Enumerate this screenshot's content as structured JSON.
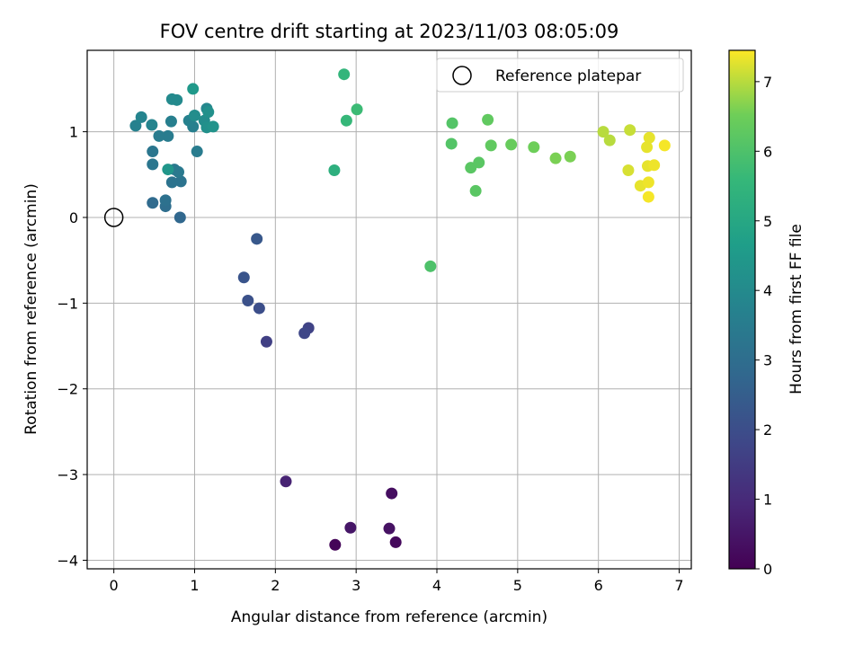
{
  "chart_data": {
    "type": "scatter",
    "title": "FOV centre drift starting at 2023/11/03 08:05:09",
    "xlabel": "Angular distance from reference (arcmin)",
    "ylabel": "Rotation from reference (arcmin)",
    "xlim": [
      -0.33,
      7.15
    ],
    "ylim": [
      -4.1,
      1.95
    ],
    "xticks": [
      0,
      1,
      2,
      3,
      4,
      5,
      6,
      7
    ],
    "xtick_labels": [
      "0",
      "1",
      "2",
      "3",
      "4",
      "5",
      "6",
      "7"
    ],
    "yticks": [
      -4,
      -3,
      -2,
      -1,
      0,
      1
    ],
    "ytick_labels": [
      "−4",
      "−3",
      "−2",
      "−1",
      "0",
      "1"
    ],
    "grid": true,
    "legend": {
      "position": "top-right",
      "entries": [
        "Reference platepar"
      ]
    },
    "reference_point": {
      "x": 0,
      "y": 0
    },
    "colorbar": {
      "label": "Hours from first FF file",
      "colormap": "viridis",
      "range": [
        0,
        7.45
      ],
      "ticks": [
        0,
        1,
        2,
        3,
        4,
        5,
        6,
        7
      ],
      "tick_labels": [
        "0",
        "1",
        "2",
        "3",
        "4",
        "5",
        "6",
        "7"
      ]
    },
    "points": [
      {
        "x": 2.74,
        "y": -3.82,
        "c": 0.1
      },
      {
        "x": 3.49,
        "y": -3.79,
        "c": 0.2
      },
      {
        "x": 3.44,
        "y": -3.22,
        "c": 0.3
      },
      {
        "x": 3.41,
        "y": -3.63,
        "c": 0.4
      },
      {
        "x": 2.93,
        "y": -3.62,
        "c": 0.5
      },
      {
        "x": 2.13,
        "y": -3.08,
        "c": 0.8
      },
      {
        "x": 1.89,
        "y": -1.45,
        "c": 1.6
      },
      {
        "x": 2.41,
        "y": -1.29,
        "c": 1.7
      },
      {
        "x": 2.36,
        "y": -1.35,
        "c": 1.8
      },
      {
        "x": 1.8,
        "y": -1.06,
        "c": 2.0
      },
      {
        "x": 1.66,
        "y": -0.97,
        "c": 2.1
      },
      {
        "x": 1.61,
        "y": -0.7,
        "c": 2.2
      },
      {
        "x": 1.77,
        "y": -0.25,
        "c": 2.3
      },
      {
        "x": 0.82,
        "y": 0.0,
        "c": 2.8
      },
      {
        "x": 0.48,
        "y": 0.17,
        "c": 2.9
      },
      {
        "x": 0.64,
        "y": 0.13,
        "c": 3.0
      },
      {
        "x": 0.64,
        "y": 0.2,
        "c": 3.1
      },
      {
        "x": 0.83,
        "y": 0.42,
        "c": 3.2
      },
      {
        "x": 0.72,
        "y": 0.41,
        "c": 3.2
      },
      {
        "x": 0.48,
        "y": 0.62,
        "c": 3.3
      },
      {
        "x": 0.48,
        "y": 0.77,
        "c": 3.3
      },
      {
        "x": 0.75,
        "y": 0.56,
        "c": 3.4
      },
      {
        "x": 0.8,
        "y": 0.53,
        "c": 3.4
      },
      {
        "x": 0.67,
        "y": 0.95,
        "c": 3.5
      },
      {
        "x": 0.56,
        "y": 0.95,
        "c": 3.5
      },
      {
        "x": 1.03,
        "y": 0.77,
        "c": 3.5
      },
      {
        "x": 0.71,
        "y": 1.12,
        "c": 3.6
      },
      {
        "x": 0.98,
        "y": 1.06,
        "c": 3.6
      },
      {
        "x": 0.93,
        "y": 1.13,
        "c": 3.7
      },
      {
        "x": 0.27,
        "y": 1.07,
        "c": 3.7
      },
      {
        "x": 0.34,
        "y": 1.17,
        "c": 3.8
      },
      {
        "x": 0.47,
        "y": 1.08,
        "c": 3.8
      },
      {
        "x": 1.15,
        "y": 1.27,
        "c": 3.9
      },
      {
        "x": 0.78,
        "y": 1.37,
        "c": 4.0
      },
      {
        "x": 0.72,
        "y": 1.38,
        "c": 4.0
      },
      {
        "x": 1.0,
        "y": 1.19,
        "c": 4.1
      },
      {
        "x": 1.12,
        "y": 1.13,
        "c": 4.1
      },
      {
        "x": 1.17,
        "y": 1.23,
        "c": 4.2
      },
      {
        "x": 1.15,
        "y": 1.05,
        "c": 4.2
      },
      {
        "x": 1.23,
        "y": 1.06,
        "c": 4.3
      },
      {
        "x": 0.67,
        "y": 0.56,
        "c": 4.4
      },
      {
        "x": 0.98,
        "y": 1.5,
        "c": 4.5
      },
      {
        "x": 2.73,
        "y": 0.55,
        "c": 5.3
      },
      {
        "x": 2.85,
        "y": 1.67,
        "c": 5.5
      },
      {
        "x": 2.88,
        "y": 1.13,
        "c": 5.6
      },
      {
        "x": 3.01,
        "y": 1.26,
        "c": 5.7
      },
      {
        "x": 3.92,
        "y": -0.57,
        "c": 6.0
      },
      {
        "x": 4.19,
        "y": 1.1,
        "c": 6.1
      },
      {
        "x": 4.18,
        "y": 0.86,
        "c": 6.1
      },
      {
        "x": 4.42,
        "y": 0.58,
        "c": 6.2
      },
      {
        "x": 4.48,
        "y": 0.31,
        "c": 6.2
      },
      {
        "x": 4.52,
        "y": 0.64,
        "c": 6.2
      },
      {
        "x": 4.63,
        "y": 1.14,
        "c": 6.3
      },
      {
        "x": 4.67,
        "y": 0.84,
        "c": 6.3
      },
      {
        "x": 4.92,
        "y": 0.85,
        "c": 6.4
      },
      {
        "x": 5.2,
        "y": 0.82,
        "c": 6.5
      },
      {
        "x": 5.47,
        "y": 0.69,
        "c": 6.6
      },
      {
        "x": 5.65,
        "y": 0.71,
        "c": 6.6
      },
      {
        "x": 6.06,
        "y": 1.0,
        "c": 7.0
      },
      {
        "x": 6.14,
        "y": 0.9,
        "c": 7.0
      },
      {
        "x": 6.39,
        "y": 1.02,
        "c": 7.1
      },
      {
        "x": 6.37,
        "y": 0.55,
        "c": 7.2
      },
      {
        "x": 6.52,
        "y": 0.37,
        "c": 7.3
      },
      {
        "x": 6.6,
        "y": 0.82,
        "c": 7.3
      },
      {
        "x": 6.63,
        "y": 0.93,
        "c": 7.3
      },
      {
        "x": 6.61,
        "y": 0.6,
        "c": 7.3
      },
      {
        "x": 6.69,
        "y": 0.61,
        "c": 7.35
      },
      {
        "x": 6.62,
        "y": 0.41,
        "c": 7.35
      },
      {
        "x": 6.62,
        "y": 0.24,
        "c": 7.4
      },
      {
        "x": 6.82,
        "y": 0.84,
        "c": 7.4
      }
    ]
  }
}
